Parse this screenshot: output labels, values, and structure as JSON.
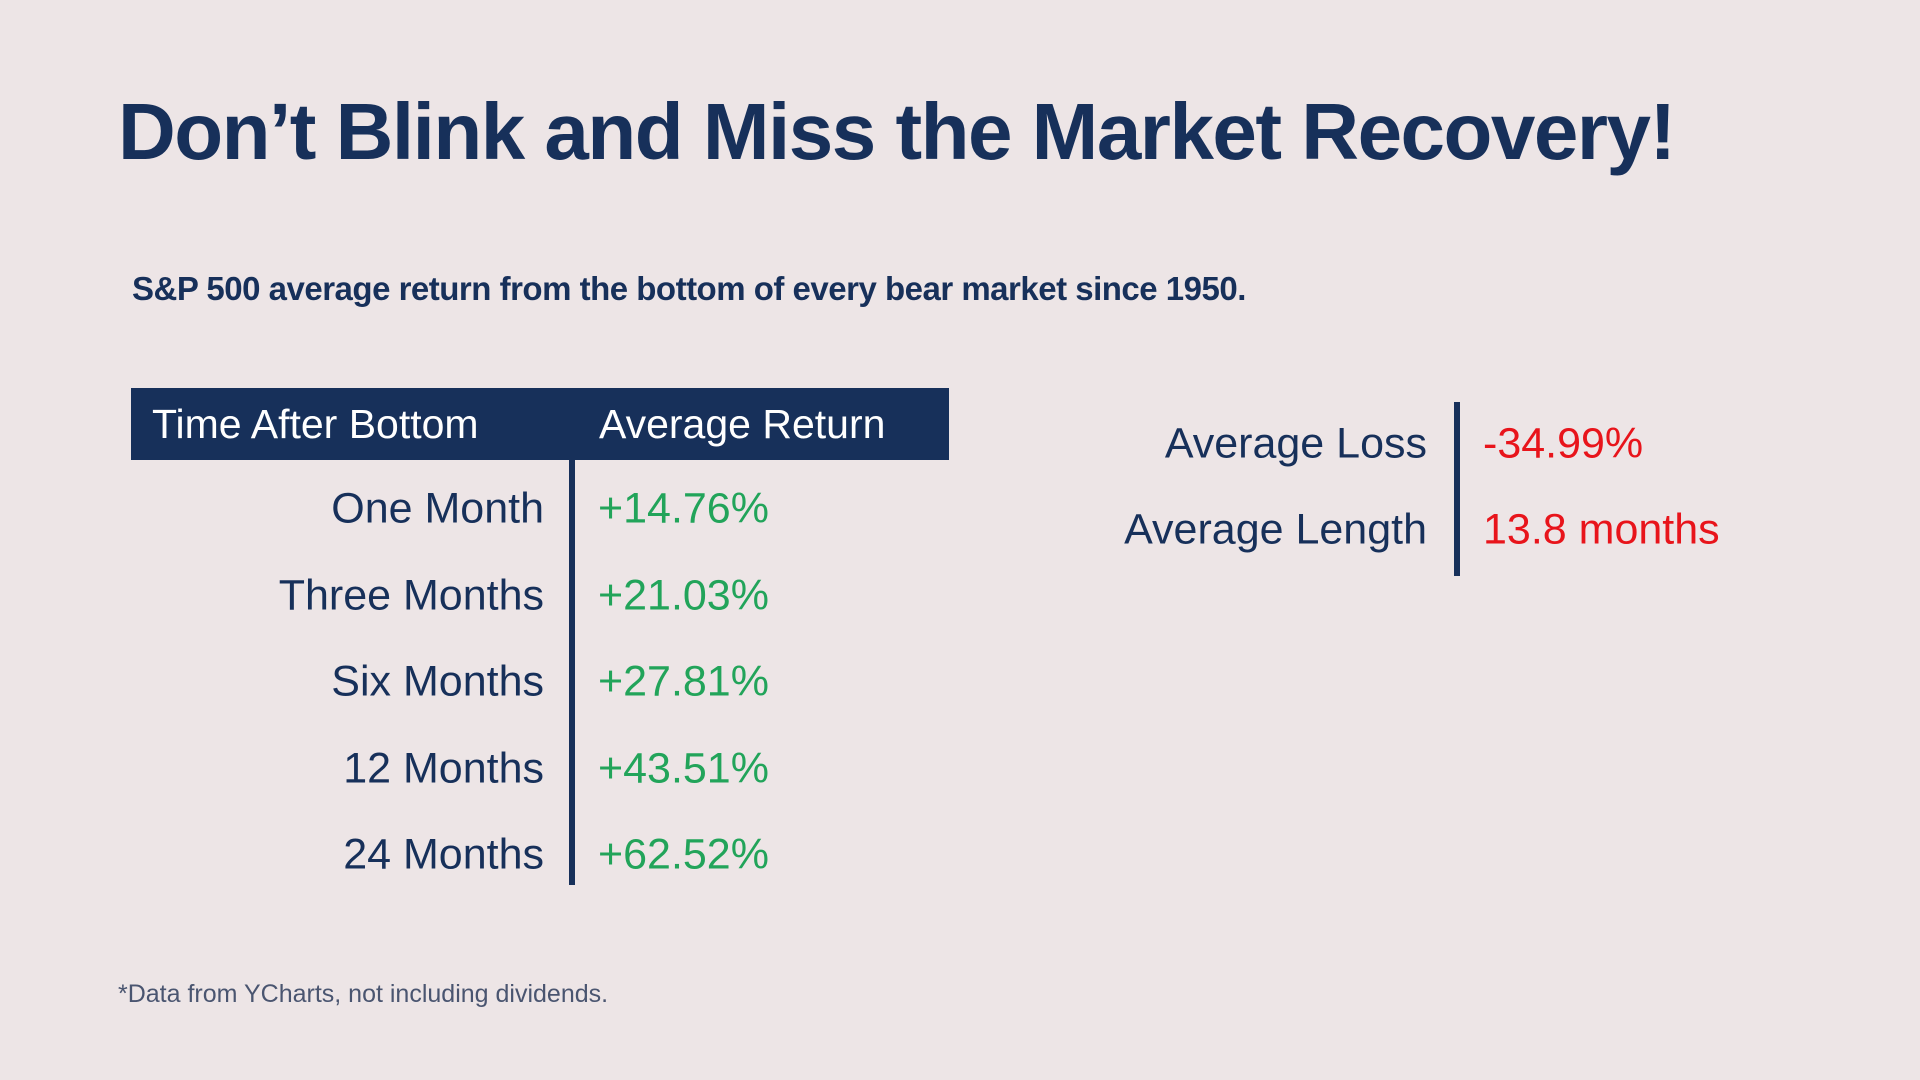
{
  "title": "Don’t Blink and Miss the Market Recovery!",
  "subtitle": "S&P 500 average return from the bottom of every bear market since 1950.",
  "table": {
    "header": [
      "Time After Bottom",
      "Average Return"
    ],
    "rows": [
      [
        "One Month",
        "+14.76%"
      ],
      [
        "Three Months",
        "+21.03%"
      ],
      [
        "Six Months",
        "+27.81%"
      ],
      [
        "12 Months",
        "+43.51%"
      ],
      [
        "24 Months",
        "+62.52%"
      ]
    ]
  },
  "stats": [
    [
      "Average Loss",
      "-34.99%"
    ],
    [
      "Average Length",
      "13.8 months"
    ]
  ],
  "footnote": "*Data from YCharts, not including dividends."
}
